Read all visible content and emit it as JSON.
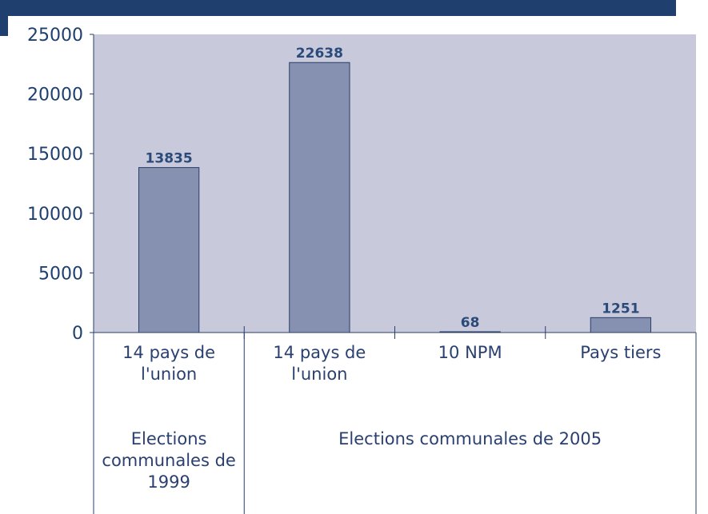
{
  "chart_data": {
    "type": "bar",
    "categories": [
      "14 pays de l'union",
      "14 pays de l'union",
      "10 NPM",
      "Pays tiers"
    ],
    "values": [
      13835,
      22638,
      68,
      1251
    ],
    "groups": [
      {
        "label": "Elections communales de 1999",
        "size": 1
      },
      {
        "label": "Elections communales de 2005",
        "size": 3
      }
    ],
    "color": "#8690b0",
    "ylim": [
      0,
      25000
    ],
    "yticks": [
      0,
      5000,
      10000,
      15000,
      20000,
      25000
    ]
  }
}
